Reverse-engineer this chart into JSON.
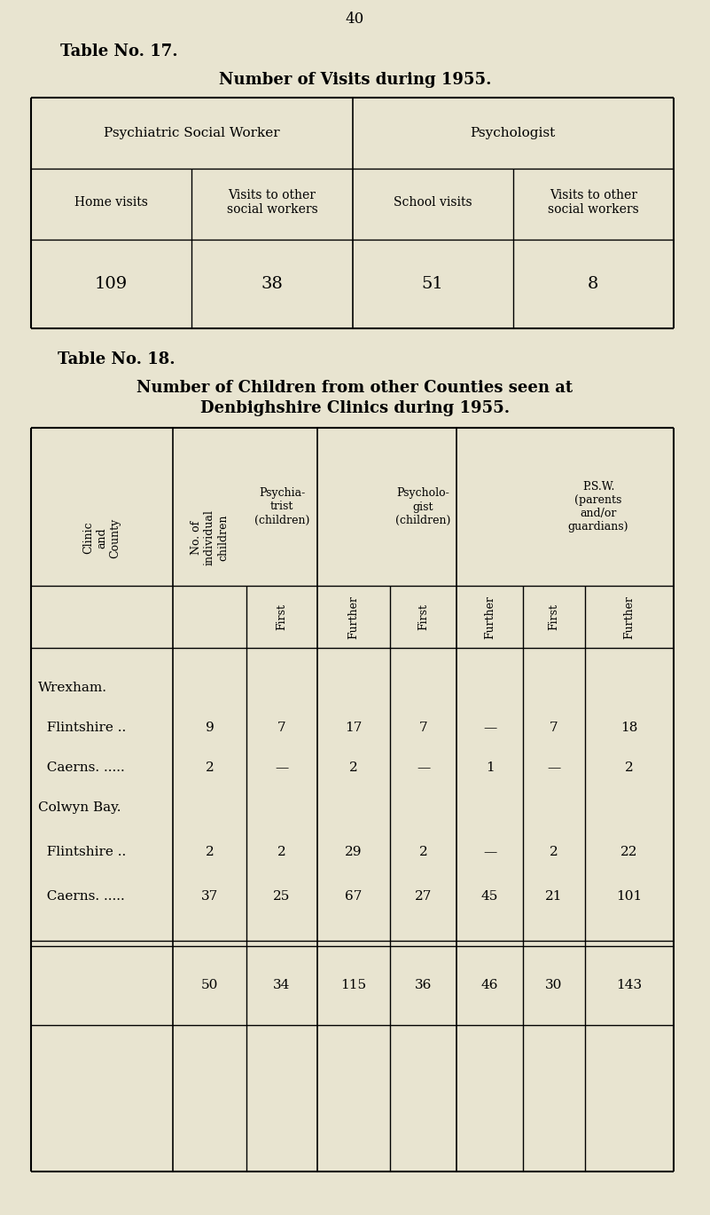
{
  "bg_color": "#e8e4d0",
  "page_number": "40",
  "table17": {
    "title": "Number of Visits during 1955.",
    "label": "Table ⁠No. 17.",
    "col1_header": "Psychiatric Social Worker",
    "col2_header": "Psychologist",
    "sub_col1": "Home visits",
    "sub_col2": "Visits to other\nsocial workers",
    "sub_col3": "School visits",
    "sub_col4": "Visits to other\nsocial workers",
    "values": [
      "109",
      "38",
      "51",
      "8"
    ]
  },
  "table18": {
    "title_line1": "Number of Children from other Counties seen at",
    "title_line2": "Denbighshire Clinics during 1955.",
    "label": "Table No. 18.",
    "rows": [
      [
        "Wrexham.",
        "",
        "",
        "",
        "",
        "",
        "",
        ""
      ],
      [
        "  Flintshire ..",
        "9",
        "7",
        "17",
        "7",
        "—",
        "7",
        "18"
      ],
      [
        "  Caerns. .....",
        "2",
        "—",
        "2",
        "—",
        "1",
        "—",
        "2"
      ],
      [
        "Colwyn Bay.",
        "",
        "",
        "",
        "",
        "",
        "",
        ""
      ],
      [
        "  Flintshire ..",
        "2",
        "2",
        "29",
        "2",
        "—",
        "2",
        "22"
      ],
      [
        "  Caerns. .....",
        "37",
        "25",
        "67",
        "27",
        "45",
        "21",
        "101"
      ]
    ],
    "totals": [
      "",
      "50",
      "34",
      "115",
      "36",
      "46",
      "30",
      "143"
    ]
  }
}
